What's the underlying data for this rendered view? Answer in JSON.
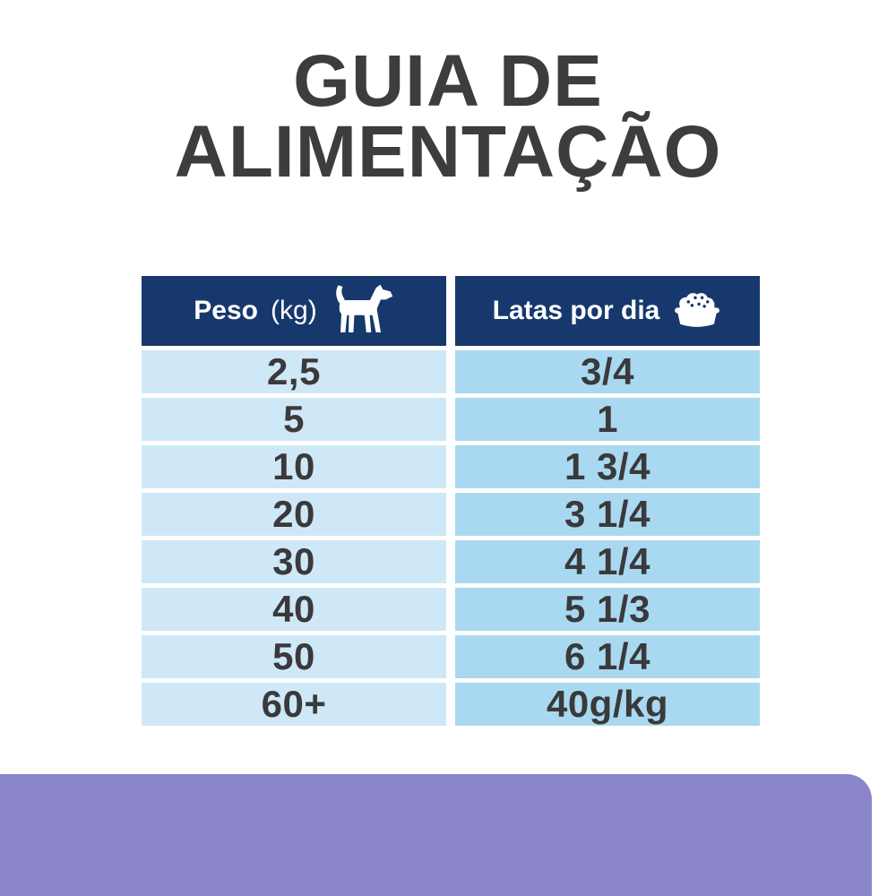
{
  "title": {
    "line1": "GUIA DE",
    "line2": "ALIMENTAÇÃO"
  },
  "chart_data": {
    "type": "table",
    "title": "GUIA DE ALIMENTAÇÃO",
    "columns": [
      "Peso (kg)",
      "Latas por dia"
    ],
    "rows": [
      {
        "peso": "2,5",
        "latas": "3/4"
      },
      {
        "peso": "5",
        "latas": "1"
      },
      {
        "peso": "10",
        "latas": "1 3/4"
      },
      {
        "peso": "20",
        "latas": "3 1/4"
      },
      {
        "peso": "30",
        "latas": "4 1/4"
      },
      {
        "peso": "40",
        "latas": "5 1/3"
      },
      {
        "peso": "50",
        "latas": "6 1/4"
      },
      {
        "peso": "60+",
        "latas": "40g/kg"
      }
    ]
  },
  "table": {
    "header": {
      "peso_bold": "Peso",
      "peso_unit": "(kg)",
      "peso_icon": "dog-icon",
      "latas_label": "Latas por dia",
      "latas_icon": "food-bowl-icon"
    }
  },
  "colors": {
    "header_navy": "#16386d",
    "cell_left_blue": "#cfe8f7",
    "cell_right_blue": "#a9d9f0",
    "text_dark": "#3a393b",
    "footer_purple": "#8b85c9",
    "background": "#ffffff"
  }
}
